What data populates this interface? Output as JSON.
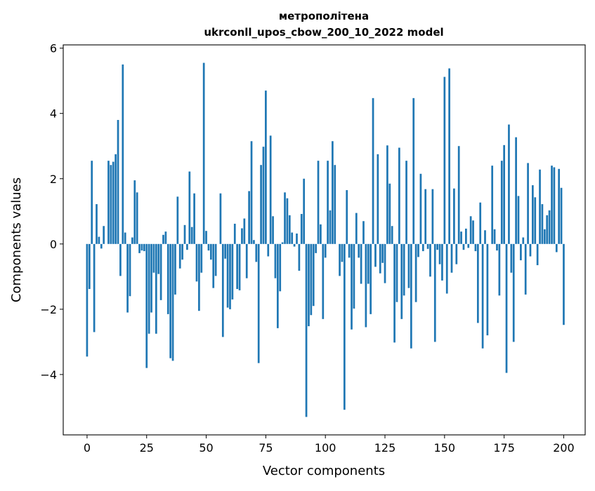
{
  "chart_data": {
    "type": "bar",
    "title": "метрополітена\nukrconll_upos_cbow_200_10_2022 model",
    "title_lines": [
      "метрополітена",
      "ukrconll_upos_cbow_200_10_2022 model"
    ],
    "xlabel": "Vector components",
    "ylabel": "Components values",
    "xlim": [
      -10,
      209
    ],
    "ylim": [
      -5.85,
      6.1
    ],
    "xticks": [
      0,
      25,
      50,
      75,
      100,
      125,
      150,
      175,
      200
    ],
    "yticks": [
      -4,
      -2,
      0,
      2,
      4,
      6
    ],
    "bar_color": "#1f77b4",
    "grid": false,
    "values": [
      -3.45,
      -1.38,
      2.55,
      -2.7,
      1.22,
      0.22,
      -0.14,
      0.55,
      0.0,
      2.55,
      2.42,
      2.52,
      2.75,
      3.8,
      -0.98,
      5.5,
      0.35,
      -2.1,
      -1.6,
      0.2,
      1.95,
      1.58,
      -0.28,
      -0.2,
      -0.22,
      -3.8,
      -2.75,
      -2.1,
      -0.88,
      -2.75,
      -0.92,
      -1.72,
      0.28,
      0.38,
      -2.15,
      -3.5,
      -3.58,
      -1.55,
      1.45,
      -0.75,
      -0.48,
      0.58,
      -0.18,
      2.22,
      0.52,
      1.55,
      -1.15,
      -2.05,
      -0.88,
      5.55,
      0.4,
      -0.2,
      -0.48,
      -1.35,
      -0.98,
      0.0,
      1.55,
      -2.85,
      -0.45,
      -1.95,
      -2.0,
      -1.7,
      0.62,
      -1.38,
      -1.42,
      0.48,
      0.78,
      -1.05,
      1.62,
      3.15,
      0.12,
      -0.55,
      -3.65,
      2.42,
      2.98,
      4.7,
      -0.38,
      3.32,
      0.85,
      -1.05,
      -2.58,
      -1.45,
      0.05,
      1.58,
      1.4,
      0.88,
      0.35,
      -0.08,
      0.32,
      -0.82,
      0.92,
      2.0,
      -5.3,
      -2.52,
      -2.18,
      -1.9,
      -0.28,
      2.55,
      0.6,
      -2.3,
      -0.42,
      2.55,
      1.03,
      3.15,
      2.42,
      0.0,
      -0.98,
      -0.55,
      -5.08,
      1.65,
      -0.42,
      -2.62,
      -1.98,
      0.95,
      -0.42,
      -1.22,
      0.7,
      -2.55,
      -1.22,
      -2.15,
      4.47,
      -0.7,
      2.75,
      -0.9,
      -0.58,
      -1.2,
      3.02,
      1.85,
      0.55,
      -3.02,
      -1.78,
      2.95,
      -2.3,
      -1.58,
      2.55,
      -1.35,
      -3.2,
      4.47,
      -1.78,
      -0.4,
      2.15,
      -0.22,
      1.68,
      -0.15,
      -1.0,
      1.68,
      -3.0,
      -0.18,
      -0.62,
      -1.12,
      5.12,
      -1.52,
      5.38,
      -0.88,
      1.7,
      -0.62,
      3.0,
      0.38,
      -0.18,
      0.47,
      -0.12,
      0.85,
      0.72,
      -0.22,
      -2.42,
      1.27,
      -3.2,
      0.42,
      -2.8,
      0.0,
      2.4,
      0.45,
      -0.2,
      -1.58,
      2.55,
      3.03,
      -3.95,
      3.66,
      -0.88,
      -3.0,
      3.27,
      1.47,
      -0.5,
      0.2,
      -1.55,
      2.48,
      -0.38,
      1.8,
      1.43,
      -0.65,
      2.28,
      1.22,
      0.45,
      0.88,
      1.03,
      2.4,
      2.35,
      -0.25,
      2.3,
      1.72,
      -2.48
    ]
  }
}
